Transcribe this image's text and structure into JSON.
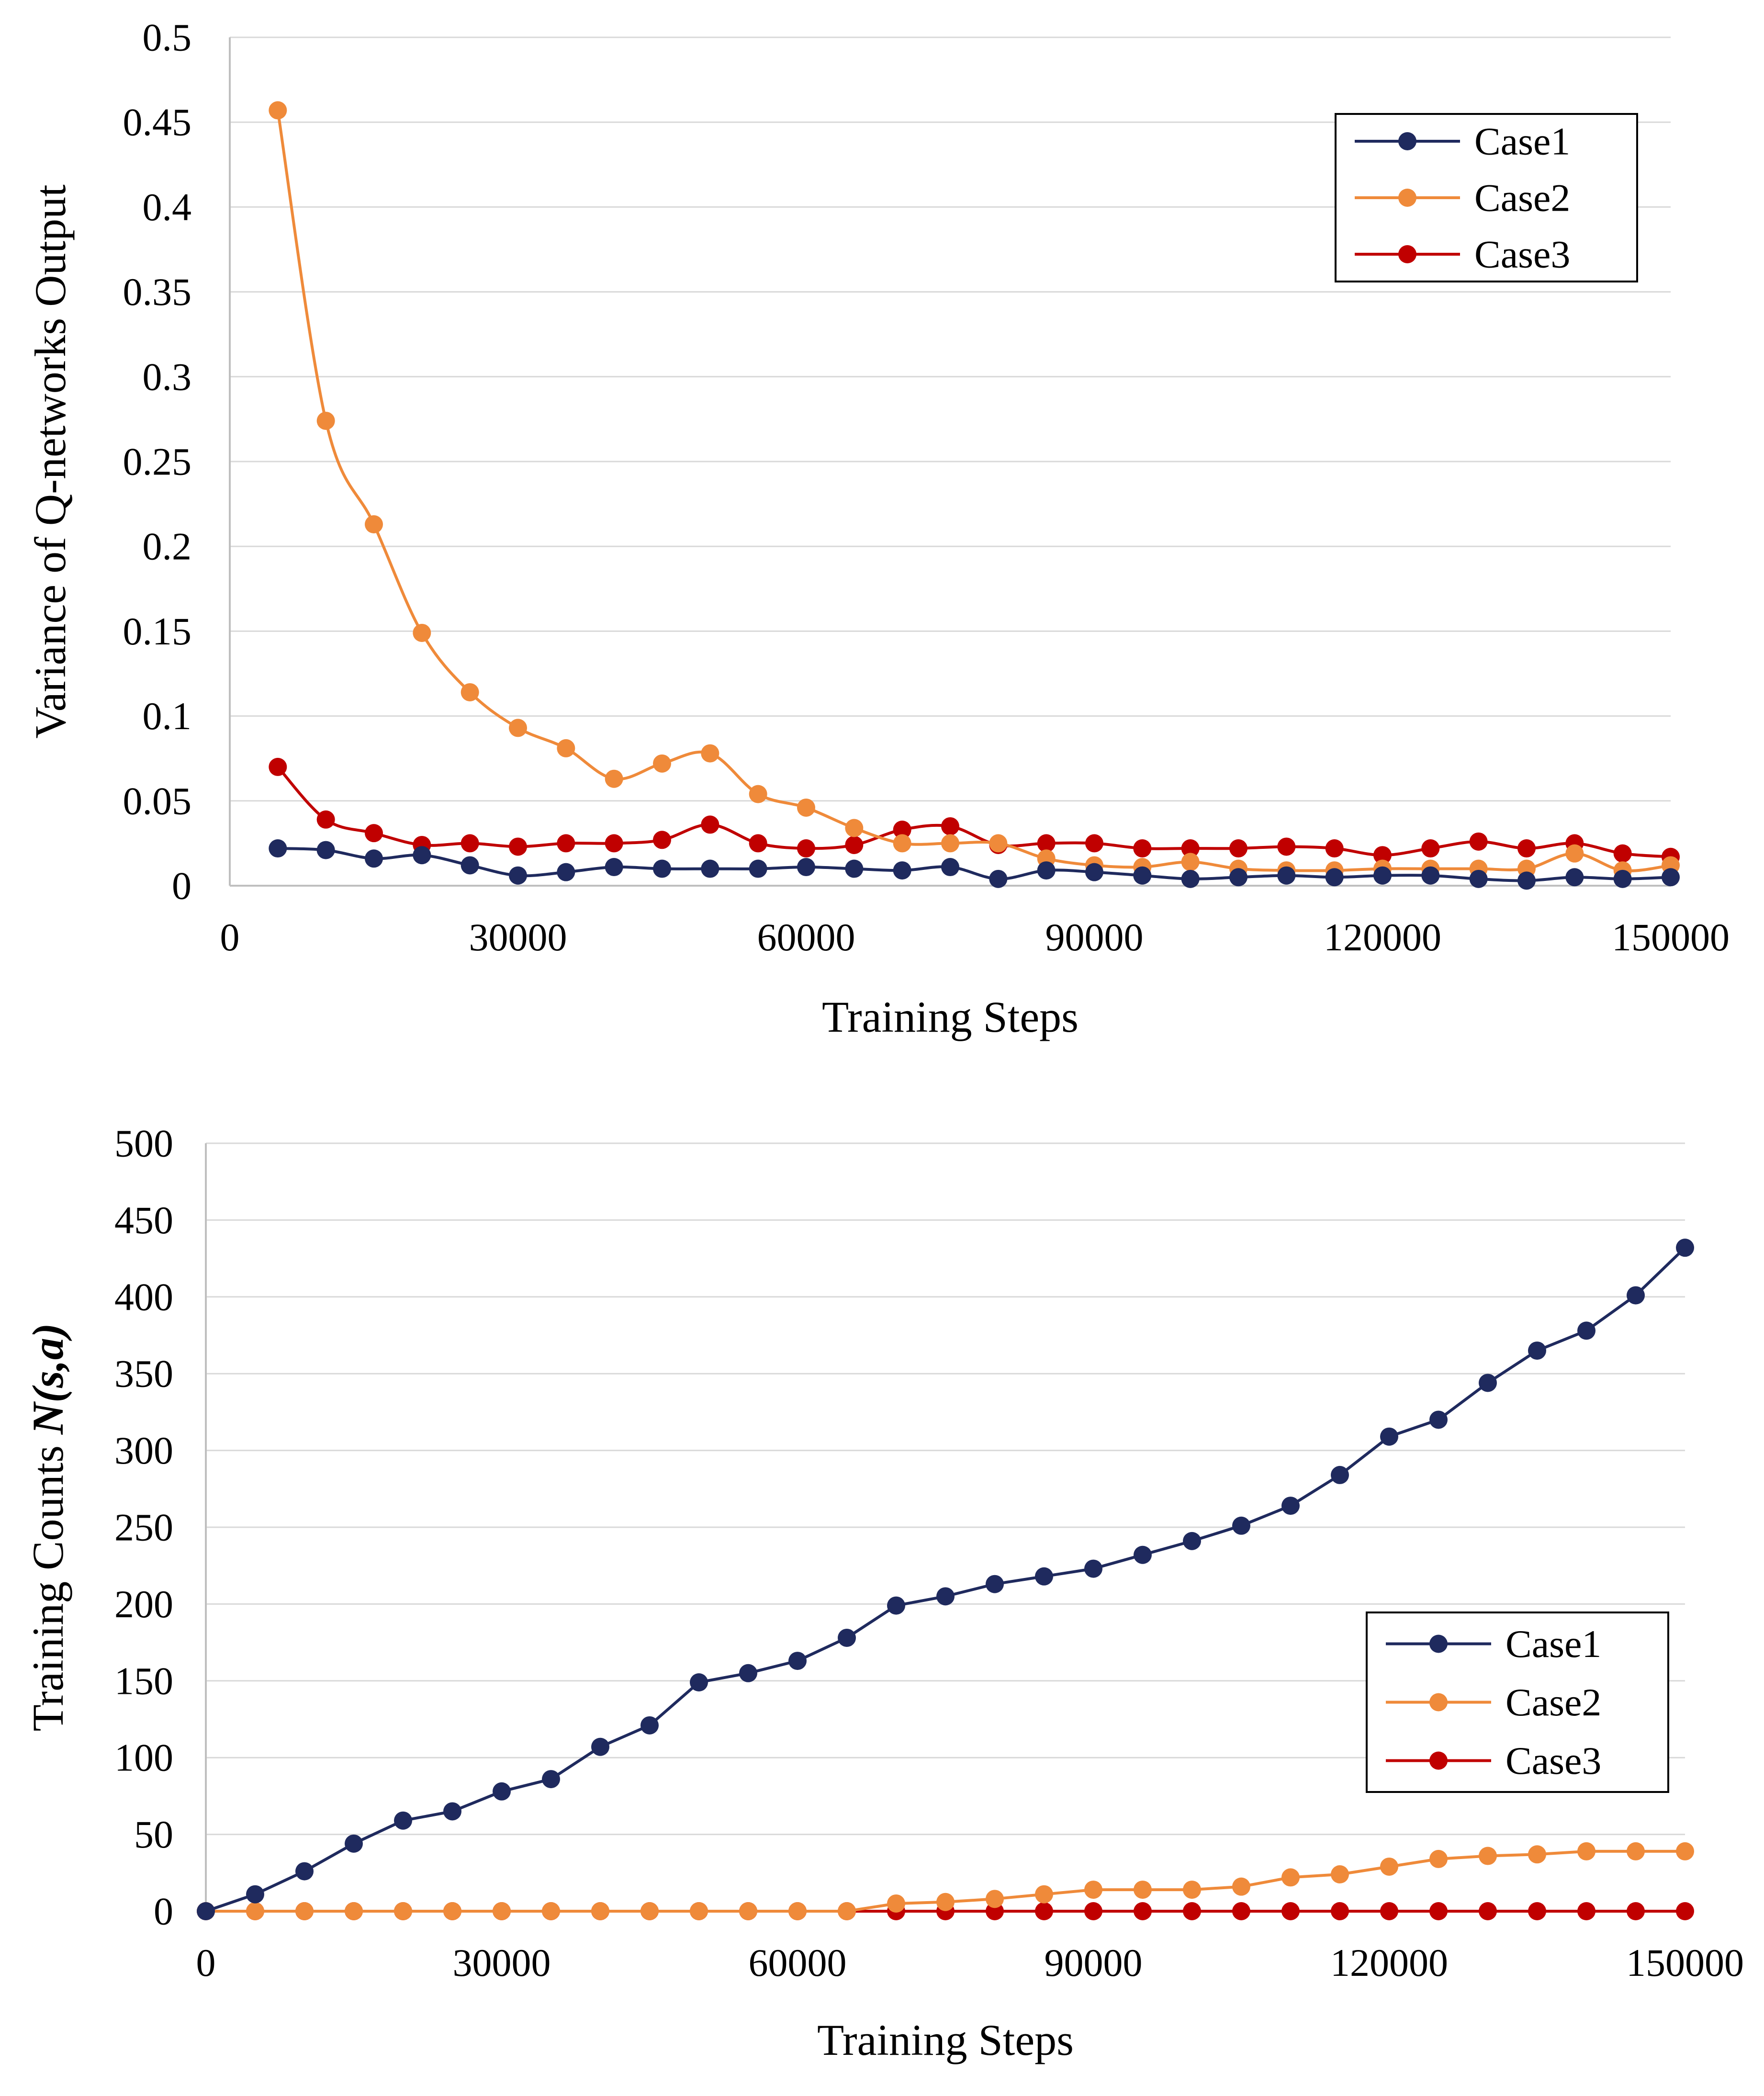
{
  "chart_data": [
    {
      "type": "line",
      "xlabel": "Training Steps",
      "ylabel": "Variance of Q-networks Output",
      "ylabel_parts": [
        {
          "text": "Variance of Q-networks Output",
          "style": "normal"
        }
      ],
      "xlim": [
        0,
        150000
      ],
      "ylim": [
        0,
        0.5
      ],
      "xticks": [
        0,
        30000,
        60000,
        90000,
        120000,
        150000
      ],
      "xtick_labels": [
        "0",
        "30000",
        "60000",
        "90000",
        "120000",
        "150000"
      ],
      "yticks": [
        0,
        0.05,
        0.1,
        0.15,
        0.2,
        0.25,
        0.3,
        0.35,
        0.4,
        0.45,
        0.5
      ],
      "ytick_labels": [
        "0",
        "0.05",
        "0.1",
        "0.15",
        "0.2",
        "0.25",
        "0.3",
        "0.35",
        "0.4",
        "0.45",
        "0.5"
      ],
      "grid": "horizontal",
      "smooth": true,
      "legend_position": "top-right",
      "x": [
        5000,
        10000,
        15000,
        20000,
        25000,
        30000,
        35000,
        40000,
        45000,
        50000,
        55000,
        60000,
        65000,
        70000,
        75000,
        80000,
        85000,
        90000,
        95000,
        100000,
        105000,
        110000,
        115000,
        120000,
        125000,
        130000,
        135000,
        140000,
        145000,
        150000
      ],
      "series": [
        {
          "name": "Case1",
          "color": "#1f2a5e",
          "values": [
            0.022,
            0.021,
            0.016,
            0.018,
            0.012,
            0.006,
            0.008,
            0.011,
            0.01,
            0.01,
            0.01,
            0.011,
            0.01,
            0.009,
            0.011,
            0.004,
            0.009,
            0.008,
            0.006,
            0.004,
            0.005,
            0.006,
            0.005,
            0.006,
            0.006,
            0.004,
            0.003,
            0.005,
            0.004,
            0.005
          ]
        },
        {
          "name": "Case2",
          "color": "#ef8a3a",
          "values": [
            0.457,
            0.274,
            0.213,
            0.149,
            0.114,
            0.093,
            0.081,
            0.063,
            0.072,
            0.078,
            0.054,
            0.046,
            0.034,
            0.025,
            0.025,
            0.025,
            0.016,
            0.012,
            0.011,
            0.014,
            0.01,
            0.009,
            0.009,
            0.01,
            0.01,
            0.01,
            0.01,
            0.019,
            0.009,
            0.012
          ]
        },
        {
          "name": "Case3",
          "color": "#c00000",
          "values": [
            0.07,
            0.039,
            0.031,
            0.024,
            0.025,
            0.023,
            0.025,
            0.025,
            0.027,
            0.036,
            0.025,
            0.022,
            0.024,
            0.033,
            0.035,
            0.024,
            0.025,
            0.025,
            0.022,
            0.022,
            0.022,
            0.023,
            0.022,
            0.018,
            0.022,
            0.026,
            0.022,
            0.025,
            0.019,
            0.017
          ]
        }
      ]
    },
    {
      "type": "line",
      "xlabel": "Training Steps",
      "ylabel": "Training Counts N(s,a)",
      "ylabel_parts": [
        {
          "text": "Training Counts ",
          "style": "normal"
        },
        {
          "text": "N(s,a)",
          "style": "bold-italic"
        }
      ],
      "xlim": [
        0,
        150000
      ],
      "ylim": [
        0,
        500
      ],
      "xticks": [
        0,
        30000,
        60000,
        90000,
        120000,
        150000
      ],
      "xtick_labels": [
        "0",
        "30000",
        "60000",
        "90000",
        "120000",
        "150000"
      ],
      "yticks": [
        0,
        50,
        100,
        150,
        200,
        250,
        300,
        350,
        400,
        450,
        500
      ],
      "ytick_labels": [
        "0",
        "50",
        "100",
        "150",
        "200",
        "250",
        "300",
        "350",
        "400",
        "450",
        "500"
      ],
      "grid": "horizontal",
      "smooth": false,
      "legend_position": "center-right",
      "x": [
        0,
        5000,
        10000,
        15000,
        20000,
        25000,
        30000,
        35000,
        40000,
        45000,
        50000,
        55000,
        60000,
        65000,
        70000,
        75000,
        80000,
        85000,
        90000,
        95000,
        100000,
        105000,
        110000,
        115000,
        120000,
        125000,
        130000,
        135000,
        140000,
        145000,
        150000
      ],
      "series": [
        {
          "name": "Case1",
          "color": "#1f2a5e",
          "values": [
            0,
            11,
            26,
            44,
            59,
            65,
            78,
            86,
            107,
            121,
            149,
            155,
            163,
            178,
            199,
            205,
            213,
            218,
            223,
            232,
            241,
            251,
            264,
            284,
            309,
            320,
            344,
            365,
            378,
            401,
            432
          ]
        },
        {
          "name": "Case2",
          "color": "#ef8a3a",
          "values": [
            0,
            0,
            0,
            0,
            0,
            0,
            0,
            0,
            0,
            0,
            0,
            0,
            0,
            0,
            5,
            6,
            8,
            11,
            14,
            14,
            14,
            16,
            22,
            24,
            29,
            34,
            36,
            37,
            39,
            39,
            39
          ]
        },
        {
          "name": "Case3",
          "color": "#c00000",
          "values": [
            0,
            0,
            0,
            0,
            0,
            0,
            0,
            0,
            0,
            0,
            0,
            0,
            0,
            0,
            0,
            0,
            0,
            0,
            0,
            0,
            0,
            0,
            0,
            0,
            0,
            0,
            0,
            0,
            0,
            0,
            0
          ]
        }
      ]
    }
  ]
}
